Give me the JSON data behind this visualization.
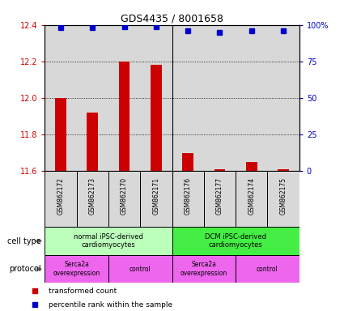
{
  "title": "GDS4435 / 8001658",
  "samples": [
    "GSM862172",
    "GSM862173",
    "GSM862170",
    "GSM862171",
    "GSM862176",
    "GSM862177",
    "GSM862174",
    "GSM862175"
  ],
  "red_values": [
    12.0,
    11.92,
    12.2,
    12.18,
    11.7,
    11.61,
    11.65,
    11.61
  ],
  "blue_values": [
    98,
    98,
    99,
    99,
    96,
    95,
    96,
    96
  ],
  "ylim_left": [
    11.6,
    12.4
  ],
  "ylim_right": [
    0,
    100
  ],
  "yticks_left": [
    11.6,
    11.8,
    12.0,
    12.2,
    12.4
  ],
  "yticks_right": [
    0,
    25,
    50,
    75,
    100
  ],
  "ytick_labels_right": [
    "0",
    "25",
    "50",
    "75",
    "100%"
  ],
  "red_color": "#cc0000",
  "blue_color": "#0000cc",
  "bar_bg_color": "#d8d8d8",
  "cell_type_groups": [
    {
      "label": "normal iPSC-derived\ncardiomyocytes",
      "start": 0,
      "end": 4,
      "color": "#bbffbb"
    },
    {
      "label": "DCM iPSC-derived\ncardiomyocytes",
      "start": 4,
      "end": 8,
      "color": "#44ee44"
    }
  ],
  "protocol_groups": [
    {
      "label": "Serca2a\noverexpression",
      "start": 0,
      "end": 2,
      "color": "#ee66ee"
    },
    {
      "label": "control",
      "start": 2,
      "end": 4,
      "color": "#ee66ee"
    },
    {
      "label": "Serca2a\noverexpression",
      "start": 4,
      "end": 6,
      "color": "#ee66ee"
    },
    {
      "label": "control",
      "start": 6,
      "end": 8,
      "color": "#ee66ee"
    }
  ],
  "cell_type_label": "cell type",
  "protocol_label": "protocol",
  "legend_red": "transformed count",
  "legend_blue": "percentile rank within the sample",
  "figsize": [
    4.25,
    3.84
  ],
  "dpi": 100
}
